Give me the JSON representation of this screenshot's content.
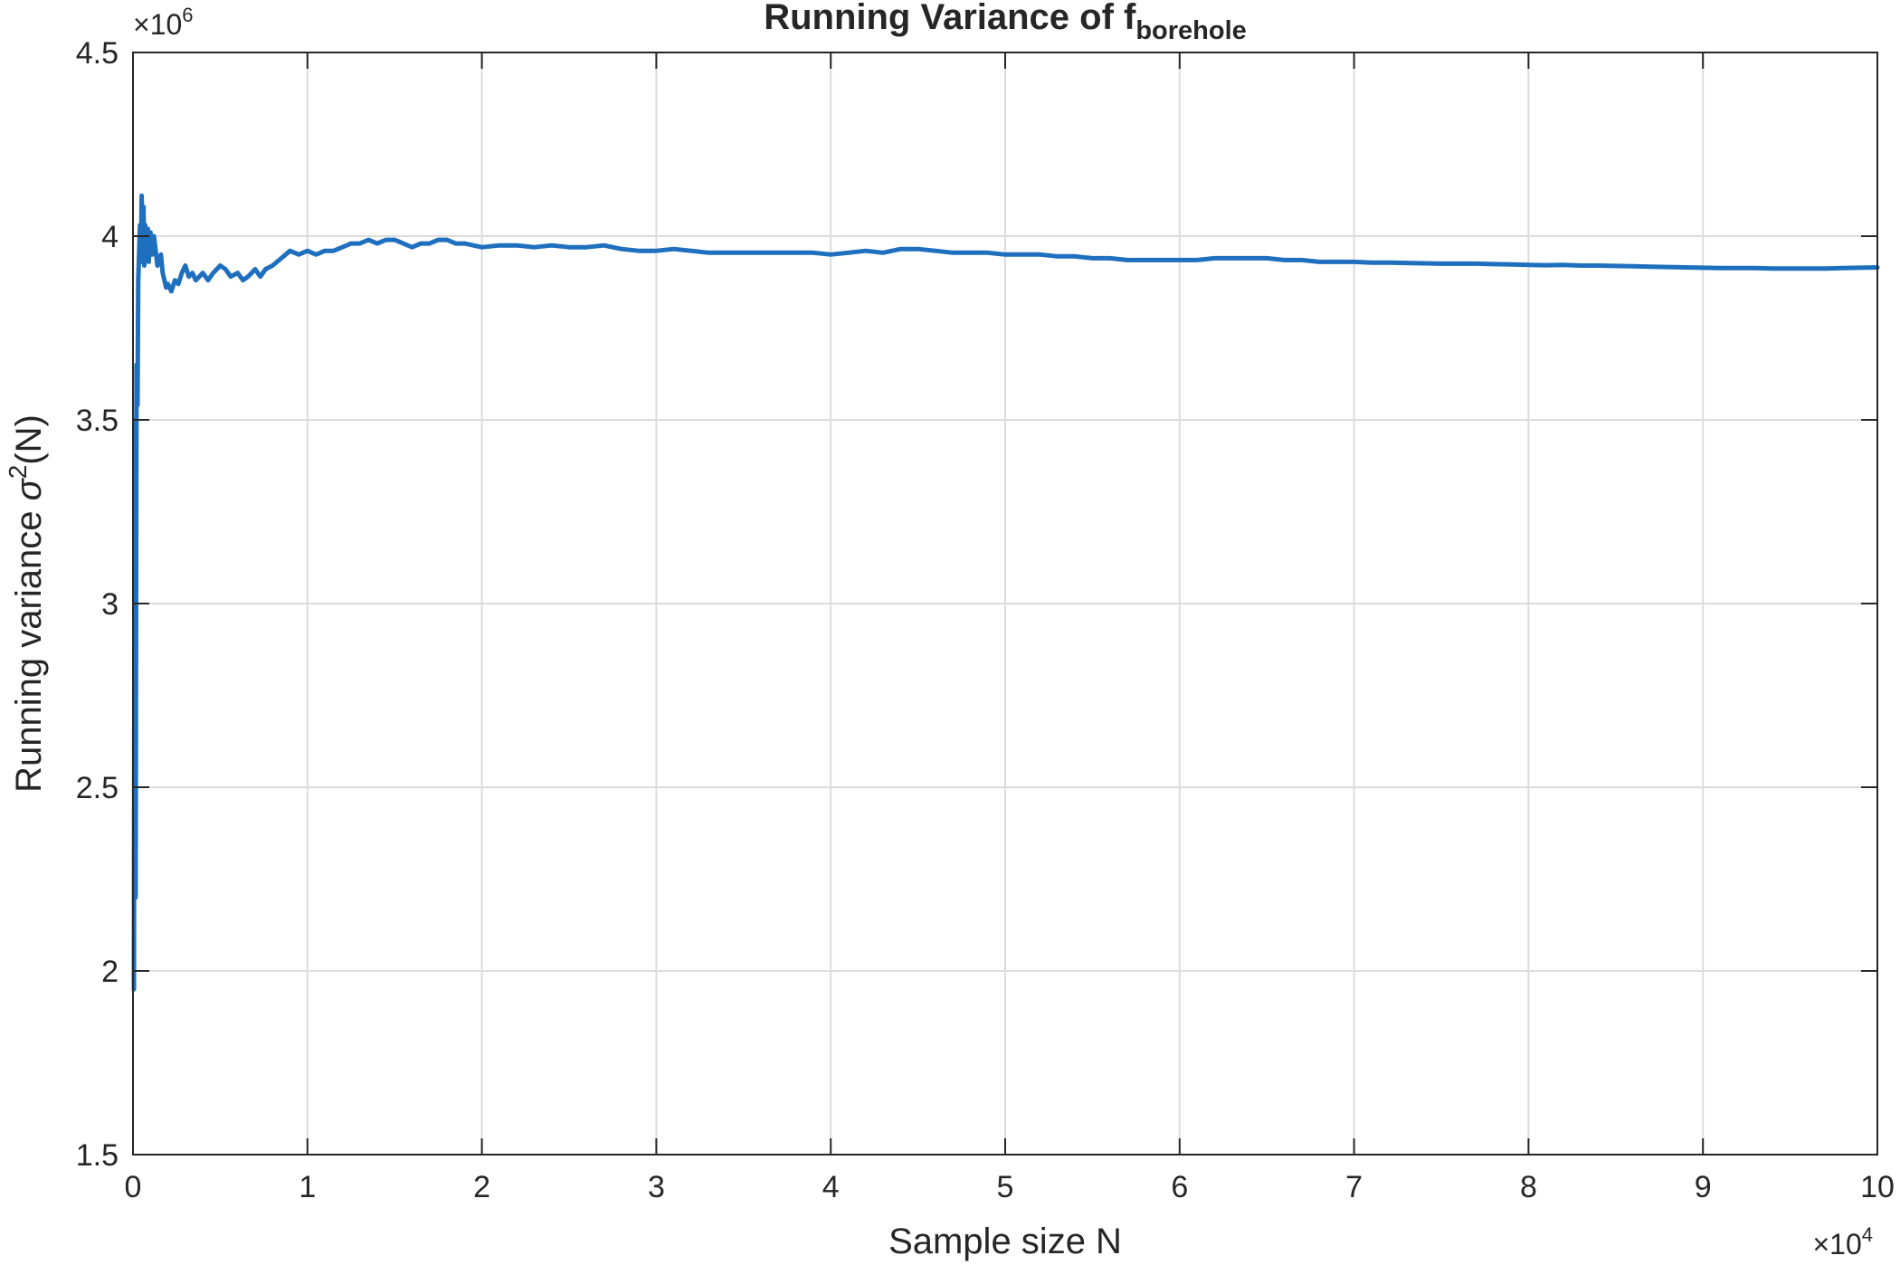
{
  "chart_data": {
    "type": "line",
    "title": "Running  Variance  of  f",
    "title_subscript": "borehole",
    "xlabel": "Sample size N",
    "ylabel_prefix": "Running  variance  ",
    "ylabel_symbol": "σ",
    "ylabel_superscript": "2",
    "ylabel_suffix": "(N)",
    "x_multiplier": {
      "base": "×10",
      "exponent": "4"
    },
    "y_multiplier": {
      "base": "×10",
      "exponent": "6"
    },
    "xlim": [
      0,
      100000
    ],
    "ylim": [
      1500000,
      4500000
    ],
    "x_ticks": [
      0,
      10000,
      20000,
      30000,
      40000,
      50000,
      60000,
      70000,
      80000,
      90000,
      100000
    ],
    "x_tick_labels": [
      "0",
      "1",
      "2",
      "3",
      "4",
      "5",
      "6",
      "7",
      "8",
      "9",
      "10"
    ],
    "y_ticks": [
      1500000,
      2000000,
      2500000,
      3000000,
      3500000,
      4000000,
      4500000
    ],
    "y_tick_labels": [
      "1.5",
      "2",
      "2.5",
      "3",
      "3.5",
      "4",
      "4.5"
    ],
    "grid": true,
    "line_color": "#1f6fbf",
    "series": [
      {
        "x": [
          50,
          100,
          150,
          200,
          260,
          300,
          350,
          400,
          450,
          500,
          550,
          600,
          650,
          700,
          750,
          800,
          850,
          900,
          950,
          1000,
          1100,
          1200,
          1300,
          1400,
          1500,
          1600,
          1700,
          1800,
          1900,
          2000,
          2200,
          2400,
          2600,
          2800,
          3000,
          3200,
          3400,
          3600,
          3800,
          4000,
          4300,
          4600,
          5000,
          5300,
          5600,
          6000,
          6300,
          6600,
          7000,
          7300,
          7600,
          8000,
          8500,
          9000,
          9500,
          10000,
          10500,
          11000,
          11500,
          12000,
          12500,
          13000,
          13500,
          14000,
          14500,
          15000,
          15500,
          16000,
          16500,
          17000,
          17500,
          18000,
          18500,
          19000,
          20000,
          21000,
          22000,
          23000,
          24000,
          25000,
          26000,
          27000,
          28000,
          29000,
          30000,
          31000,
          32000,
          33000,
          34000,
          35000,
          36000,
          37000,
          38000,
          39000,
          40000,
          41000,
          42000,
          43000,
          44000,
          45000,
          46000,
          47000,
          48000,
          49000,
          50000,
          51000,
          52000,
          53000,
          54000,
          55000,
          56000,
          57000,
          58000,
          59000,
          60000,
          61000,
          62000,
          63000,
          64000,
          65000,
          66000,
          67000,
          68000,
          69000,
          70000,
          71000,
          72000,
          73000,
          74000,
          75000,
          76000,
          77000,
          78000,
          79000,
          80000,
          81000,
          82000,
          83000,
          84000,
          85000,
          86000,
          87000,
          88000,
          89000,
          90000,
          91000,
          92000,
          93000,
          94000,
          95000,
          96000,
          97000,
          98000,
          99000,
          100000
        ],
        "y": [
          1950000,
          3500000,
          2200000,
          3650000,
          3540000,
          3880000,
          3950000,
          4030000,
          3930000,
          4110000,
          3940000,
          4080000,
          3920000,
          4030000,
          3940000,
          3960000,
          4020000,
          3930000,
          3990000,
          4010000,
          3950000,
          4000000,
          3960000,
          3920000,
          3930000,
          3950000,
          3900000,
          3880000,
          3860000,
          3870000,
          3850000,
          3880000,
          3870000,
          3900000,
          3920000,
          3890000,
          3900000,
          3880000,
          3890000,
          3900000,
          3880000,
          3900000,
          3920000,
          3910000,
          3890000,
          3900000,
          3880000,
          3890000,
          3910000,
          3890000,
          3910000,
          3920000,
          3940000,
          3960000,
          3950000,
          3960000,
          3950000,
          3960000,
          3960000,
          3970000,
          3980000,
          3980000,
          3990000,
          3980000,
          3990000,
          3990000,
          3980000,
          3970000,
          3980000,
          3980000,
          3990000,
          3990000,
          3980000,
          3980000,
          3970000,
          3975000,
          3975000,
          3970000,
          3975000,
          3970000,
          3970000,
          3975000,
          3965000,
          3960000,
          3960000,
          3965000,
          3960000,
          3955000,
          3955000,
          3955000,
          3955000,
          3955000,
          3955000,
          3955000,
          3950000,
          3955000,
          3960000,
          3955000,
          3965000,
          3965000,
          3960000,
          3955000,
          3955000,
          3955000,
          3950000,
          3950000,
          3950000,
          3945000,
          3945000,
          3940000,
          3940000,
          3935000,
          3935000,
          3935000,
          3935000,
          3935000,
          3940000,
          3940000,
          3940000,
          3940000,
          3935000,
          3935000,
          3930000,
          3930000,
          3930000,
          3928000,
          3928000,
          3927000,
          3926000,
          3925000,
          3925000,
          3925000,
          3924000,
          3923000,
          3922000,
          3921000,
          3922000,
          3920000,
          3920000,
          3919000,
          3918000,
          3917000,
          3916000,
          3915000,
          3914000,
          3913000,
          3913000,
          3913000,
          3912000,
          3912000,
          3912000,
          3912000,
          3913000,
          3914000,
          3915000
        ]
      }
    ]
  }
}
